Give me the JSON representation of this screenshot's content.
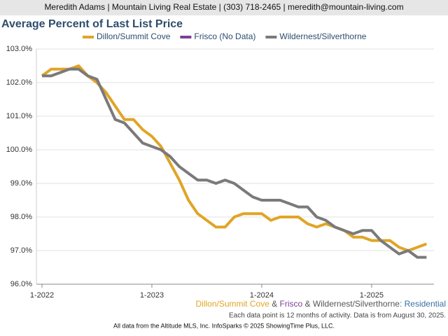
{
  "header": "Meredith Adams | Mountain Living Real Estate | (303) 718-2465 | meredith@mountain-living.com",
  "chart_data": {
    "type": "line",
    "title": "Average Percent of Last List Price",
    "categories": [
      "1-2022",
      null,
      null,
      null,
      null,
      null,
      null,
      null,
      null,
      null,
      null,
      null,
      "1-2023",
      null,
      null,
      null,
      null,
      null,
      null,
      null,
      null,
      null,
      null,
      null,
      "1-2024",
      null,
      null,
      null,
      null,
      null,
      null,
      null,
      null,
      null,
      null,
      null,
      "1-2025",
      null,
      null,
      null,
      null,
      null,
      null
    ],
    "series": [
      {
        "name": "Dillon/Summit Cove",
        "color": "#e0a526",
        "values": [
          102.2,
          102.4,
          102.4,
          102.4,
          102.5,
          102.2,
          102.0,
          101.7,
          101.3,
          100.9,
          100.9,
          100.6,
          100.4,
          100.1,
          99.6,
          99.1,
          98.5,
          98.1,
          97.9,
          97.7,
          97.7,
          98.0,
          98.1,
          98.1,
          98.1,
          97.9,
          98.0,
          98.0,
          98.0,
          97.8,
          97.7,
          97.8,
          97.7,
          97.6,
          97.4,
          97.4,
          97.3,
          97.3,
          97.3,
          97.1,
          97.0,
          97.1,
          97.2
        ]
      },
      {
        "name": "Frisco (No Data)",
        "color": "#7b3f99",
        "values": [
          null,
          null,
          null,
          null,
          null,
          null,
          null,
          null,
          null,
          null,
          null,
          null,
          null,
          null,
          null,
          null,
          null,
          null,
          null,
          null,
          null,
          null,
          null,
          null,
          null,
          null,
          null,
          null,
          null,
          null,
          null,
          null,
          null,
          null,
          null,
          null,
          null,
          null,
          null,
          null,
          null,
          null,
          null
        ]
      },
      {
        "name": "Wildernest/Silverthorne",
        "color": "#7a7a7a",
        "values": [
          102.2,
          102.2,
          102.3,
          102.4,
          102.4,
          102.2,
          102.1,
          101.5,
          100.9,
          100.8,
          100.5,
          100.2,
          100.1,
          100.0,
          99.8,
          99.5,
          99.3,
          99.1,
          99.1,
          99.0,
          99.1,
          99.0,
          98.8,
          98.6,
          98.5,
          98.5,
          98.5,
          98.4,
          98.3,
          98.3,
          98.0,
          97.9,
          97.7,
          97.6,
          97.5,
          97.6,
          97.6,
          97.3,
          97.1,
          96.9,
          97.0,
          96.8,
          96.8
        ]
      }
    ],
    "ylim": [
      96.0,
      103.0
    ],
    "yticks": [
      {
        "value": 96,
        "label": "96.0%"
      },
      {
        "value": 97,
        "label": "97.0%"
      },
      {
        "value": 98,
        "label": "98.0%"
      },
      {
        "value": 99,
        "label": "99.0%"
      },
      {
        "value": 100,
        "label": "100.0%"
      },
      {
        "value": 101,
        "label": "101.0%"
      },
      {
        "value": 102,
        "label": "102.0%"
      },
      {
        "value": 103,
        "label": "103.0%"
      }
    ],
    "grid": true,
    "caption": [
      {
        "text": "Dillon/Summit Cove",
        "color": "#e0a526"
      },
      {
        "text": " & ",
        "color": "#555555"
      },
      {
        "text": "Frisco",
        "color": "#7b3f99"
      },
      {
        "text": " & ",
        "color": "#555555"
      },
      {
        "text": "Wildernest/Silverthorne",
        "color": "#555555"
      },
      {
        "text": ": Residential",
        "color": "#3a6fa8"
      }
    ],
    "note": "Each data point is 12 months of activity. Data is from August 30, 2025."
  },
  "footer": "All data from the Altitude MLS, Inc. InfoSparks © 2025 ShowingTime Plus, LLC."
}
